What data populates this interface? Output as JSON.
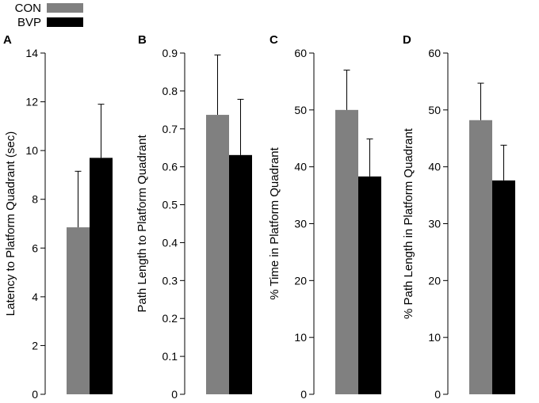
{
  "legend": [
    {
      "label": "CON",
      "color": "#808080"
    },
    {
      "label": "BVP",
      "color": "#000000"
    }
  ],
  "chart_data": [
    {
      "type": "bar",
      "panel": "A",
      "ylabel": "Latency to Platform Quadrant (sec)",
      "ylim": [
        0,
        14
      ],
      "yticks": [
        0,
        2,
        4,
        6,
        8,
        10,
        12,
        14
      ],
      "ytick_labels": [
        "0",
        "2",
        "4",
        "6",
        "8",
        "10",
        "12",
        "14"
      ],
      "series": [
        {
          "name": "CON",
          "value": 6.85,
          "error": 2.3
        },
        {
          "name": "BVP",
          "value": 9.7,
          "error": 2.2
        }
      ]
    },
    {
      "type": "bar",
      "panel": "B",
      "ylabel": "Path Length to Platform Quadrant",
      "ylim": [
        0,
        0.9
      ],
      "yticks": [
        0,
        0.1,
        0.2,
        0.3,
        0.4,
        0.5,
        0.6,
        0.7,
        0.8,
        0.9
      ],
      "ytick_labels": [
        "0",
        "0.1",
        "0.2",
        "0.3",
        "0.4",
        "0.5",
        "0.6",
        "0.7",
        "0.8",
        "0.9"
      ],
      "series": [
        {
          "name": "CON",
          "value": 0.737,
          "error": 0.158
        },
        {
          "name": "BVP",
          "value": 0.631,
          "error": 0.147
        }
      ]
    },
    {
      "type": "bar",
      "panel": "C",
      "ylabel": "% Time in Platform Quadrant",
      "ylim": [
        0,
        60
      ],
      "yticks": [
        0,
        10,
        20,
        30,
        40,
        50,
        60
      ],
      "ytick_labels": [
        "0",
        "10",
        "20",
        "30",
        "40",
        "50",
        "60"
      ],
      "series": [
        {
          "name": "CON",
          "value": 50.0,
          "error": 7.0
        },
        {
          "name": "BVP",
          "value": 38.3,
          "error": 6.6
        }
      ]
    },
    {
      "type": "bar",
      "panel": "D",
      "ylabel": "% Path Length in Platform Quadrant",
      "ylim": [
        0,
        60
      ],
      "yticks": [
        0,
        10,
        20,
        30,
        40,
        50,
        60
      ],
      "ytick_labels": [
        "0",
        "10",
        "20",
        "30",
        "40",
        "50",
        "60"
      ],
      "series": [
        {
          "name": "CON",
          "value": 48.2,
          "error": 6.5
        },
        {
          "name": "BVP",
          "value": 37.6,
          "error": 6.2
        }
      ]
    }
  ]
}
